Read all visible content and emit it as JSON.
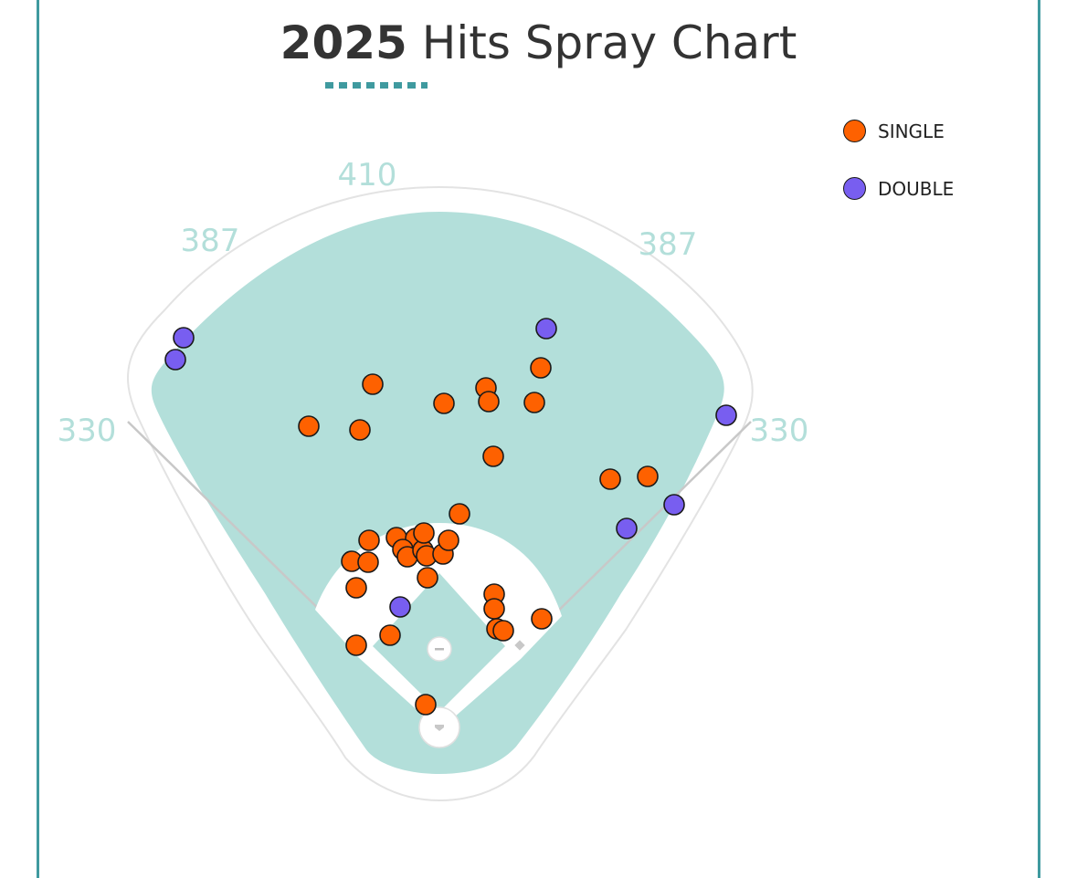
{
  "title": {
    "year": "2025",
    "text": "Hits Spray Chart"
  },
  "colors": {
    "single": "#fe6100",
    "double": "#785ef0",
    "grass": "#b3dfda",
    "frame": "#3f9a9f",
    "distance_text": "#b3dfda"
  },
  "legend": [
    {
      "key": "single",
      "label": "SINGLE",
      "color": "#fe6100"
    },
    {
      "key": "double",
      "label": "DOUBLE",
      "color": "#785ef0"
    }
  ],
  "fence_distances": {
    "left_line": "330",
    "left_center": "387",
    "center": "410",
    "right_center": "387",
    "right_line": "330"
  },
  "chart_data": {
    "type": "scatter",
    "title": "2025 Hits Spray Chart",
    "xlabel": "",
    "ylabel": "",
    "note_units": "x,y in spray-chart field units; home plate at (0,0), center field toward +y",
    "series": [
      {
        "name": "SINGLE",
        "color": "#fe6100",
        "points": [
          [
            -143,
            330
          ],
          [
            -87,
            326
          ],
          [
            -73,
            376
          ],
          [
            5,
            355
          ],
          [
            51,
            372
          ],
          [
            54,
            357
          ],
          [
            104,
            356
          ],
          [
            111,
            394
          ],
          [
            59,
            297
          ],
          [
            -47,
            208
          ],
          [
            -26,
            207
          ],
          [
            -40,
            195
          ],
          [
            -35,
            187
          ],
          [
            -18,
            194
          ],
          [
            -14,
            188
          ],
          [
            -17,
            213
          ],
          [
            4,
            190
          ],
          [
            10,
            205
          ],
          [
            22,
            234
          ],
          [
            -77,
            205
          ],
          [
            -96,
            182
          ],
          [
            -78,
            181
          ],
          [
            -91,
            153
          ],
          [
            -13,
            164
          ],
          [
            60,
            146
          ],
          [
            60,
            130
          ],
          [
            63,
            108
          ],
          [
            70,
            106
          ],
          [
            112,
            119
          ],
          [
            -54,
            101
          ],
          [
            -91,
            90
          ],
          [
            -15,
            25
          ],
          [
            187,
            272
          ],
          [
            228,
            275
          ]
        ]
      },
      {
        "name": "DOUBLE",
        "color": "#785ef0",
        "points": [
          [
            -280,
            427
          ],
          [
            -289,
            403
          ],
          [
            117,
            437
          ],
          [
            314,
            342
          ],
          [
            205,
            218
          ],
          [
            257,
            244
          ],
          [
            -43,
            132
          ]
        ]
      }
    ]
  }
}
